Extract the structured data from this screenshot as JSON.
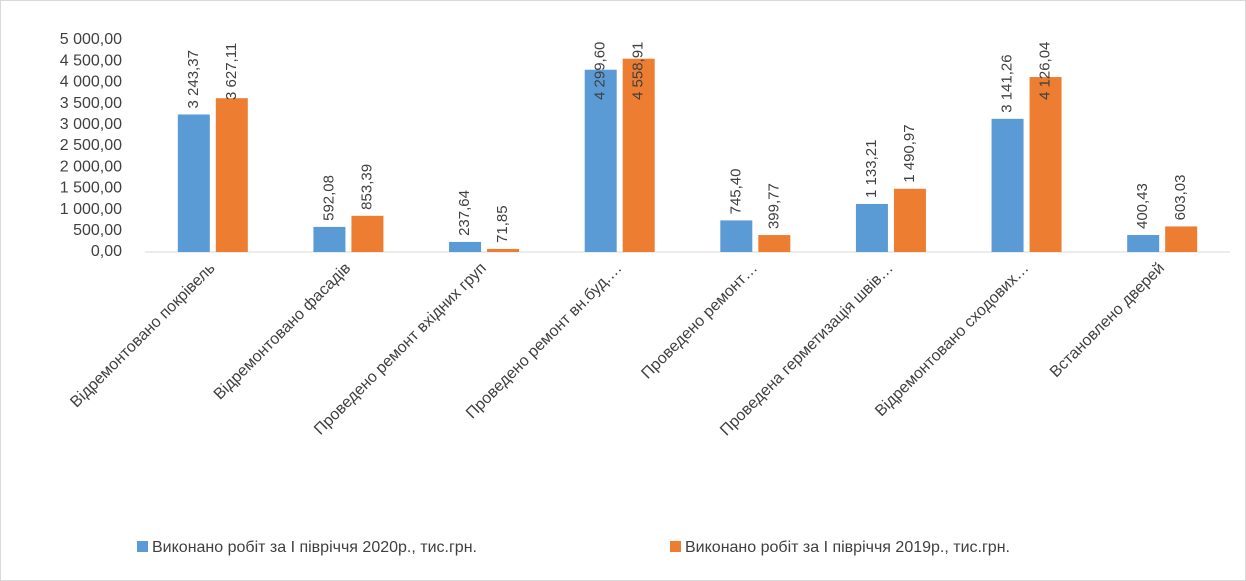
{
  "chart_data": {
    "type": "bar",
    "categories": [
      "Відремонтовано покрівель",
      "Відремонтовано фасадів",
      "Проведено ремонт вхідних груп",
      "Проведено ремонт вн.буд.…",
      "Проведено ремонт…",
      "Проведена герметизація швів…",
      "Відремонтовано сходових…",
      "Встановлено дверей"
    ],
    "series": [
      {
        "name": "Виконано робіт за І півріччя 2020р., тис.грн.",
        "color": "#5b9bd5",
        "values": [
          3243.37,
          592.08,
          237.64,
          4299.6,
          745.4,
          1133.21,
          3141.26,
          400.43
        ],
        "value_labels": [
          "3 243,37",
          "592,08",
          "237,64",
          "4 299,60",
          "745,40",
          "1 133,21",
          "3 141,26",
          "400,43"
        ]
      },
      {
        "name": "Виконано робіт за І півріччя 2019р., тис.грн.",
        "color": "#ed7d31",
        "values": [
          3627.11,
          853.39,
          71.85,
          4558.91,
          399.77,
          1490.97,
          4126.04,
          603.03
        ],
        "value_labels": [
          "3 627,11",
          "853,39",
          "71,85",
          "4 558,91",
          "399,77",
          "1 490,97",
          "4 126,04",
          "603,03"
        ]
      }
    ],
    "ylim": [
      0,
      5000
    ],
    "yticks": [
      {
        "value": 0,
        "label": "0,00"
      },
      {
        "value": 500,
        "label": "500,00"
      },
      {
        "value": 1000,
        "label": "1 000,00"
      },
      {
        "value": 1500,
        "label": "1 500,00"
      },
      {
        "value": 2000,
        "label": "2 000,00"
      },
      {
        "value": 2500,
        "label": "2 500,00"
      },
      {
        "value": 3000,
        "label": "3 000,00"
      },
      {
        "value": 3500,
        "label": "3 500,00"
      },
      {
        "value": 4000,
        "label": "4 000,00"
      },
      {
        "value": 4500,
        "label": "4 500,00"
      },
      {
        "value": 5000,
        "label": "5 000,00"
      }
    ],
    "grid": false,
    "legend": "bottom"
  }
}
